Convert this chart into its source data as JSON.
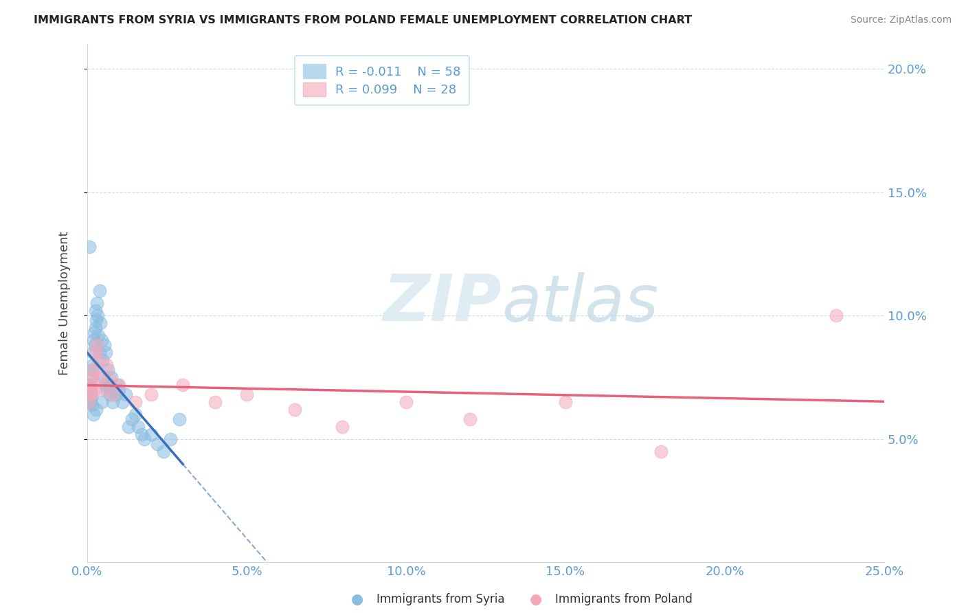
{
  "title": "IMMIGRANTS FROM SYRIA VS IMMIGRANTS FROM POLAND FEMALE UNEMPLOYMENT CORRELATION CHART",
  "source": "Source: ZipAtlas.com",
  "ylabel": "Female Unemployment",
  "xlim": [
    0.0,
    25.0
  ],
  "ylim": [
    0.0,
    21.0
  ],
  "yticks": [
    5.0,
    10.0,
    15.0,
    20.0
  ],
  "xticks": [
    0.0,
    5.0,
    10.0,
    15.0,
    20.0,
    25.0
  ],
  "legend_r1": "R = -0.011",
  "legend_n1": "N = 58",
  "legend_r2": "R = 0.099",
  "legend_n2": "N = 28",
  "color_syria": "#8abde0",
  "color_poland": "#f4a8b8",
  "color_syria_line": "#3a6fbf",
  "color_poland_line": "#e8607a",
  "color_axis_text": "#5b9bd5",
  "watermark_zip": "ZIP",
  "watermark_atlas": "atlas",
  "syria_x": [
    0.05,
    0.05,
    0.07,
    0.08,
    0.1,
    0.12,
    0.13,
    0.14,
    0.15,
    0.16,
    0.17,
    0.18,
    0.2,
    0.22,
    0.23,
    0.25,
    0.27,
    0.28,
    0.3,
    0.32,
    0.35,
    0.38,
    0.4,
    0.42,
    0.45,
    0.48,
    0.5,
    0.53,
    0.55,
    0.58,
    0.6,
    0.65,
    0.7,
    0.72,
    0.75,
    0.8,
    0.85,
    0.9,
    0.95,
    1.0,
    1.1,
    1.2,
    1.3,
    1.4,
    1.5,
    1.6,
    1.7,
    1.8,
    2.0,
    2.2,
    2.4,
    2.6,
    0.06,
    0.09,
    0.19,
    0.29,
    0.46,
    2.9
  ],
  "syria_y": [
    7.0,
    6.5,
    6.8,
    7.2,
    6.9,
    7.1,
    6.7,
    7.5,
    7.8,
    6.4,
    8.0,
    8.5,
    9.0,
    9.3,
    8.8,
    9.5,
    10.2,
    9.8,
    10.5,
    10.0,
    9.2,
    11.0,
    8.5,
    9.7,
    9.0,
    8.2,
    7.5,
    8.8,
    7.2,
    8.5,
    7.0,
    7.8,
    7.2,
    6.8,
    7.5,
    6.5,
    7.0,
    6.8,
    7.2,
    7.0,
    6.5,
    6.8,
    5.5,
    5.8,
    6.0,
    5.5,
    5.2,
    5.0,
    5.2,
    4.8,
    4.5,
    5.0,
    12.8,
    6.5,
    6.0,
    6.2,
    6.5,
    5.8
  ],
  "poland_x": [
    0.05,
    0.08,
    0.1,
    0.12,
    0.15,
    0.18,
    0.2,
    0.25,
    0.3,
    0.35,
    0.4,
    0.5,
    0.6,
    0.7,
    0.8,
    1.0,
    1.5,
    2.0,
    3.0,
    4.0,
    5.0,
    6.5,
    8.0,
    10.0,
    12.0,
    15.0,
    18.0,
    23.5
  ],
  "poland_y": [
    6.5,
    7.0,
    6.8,
    7.2,
    7.5,
    6.9,
    7.8,
    8.5,
    8.8,
    8.2,
    7.5,
    7.0,
    8.0,
    7.5,
    6.8,
    7.2,
    6.5,
    6.8,
    7.2,
    6.5,
    6.8,
    6.2,
    5.5,
    6.5,
    5.8,
    6.5,
    4.5,
    10.0
  ]
}
